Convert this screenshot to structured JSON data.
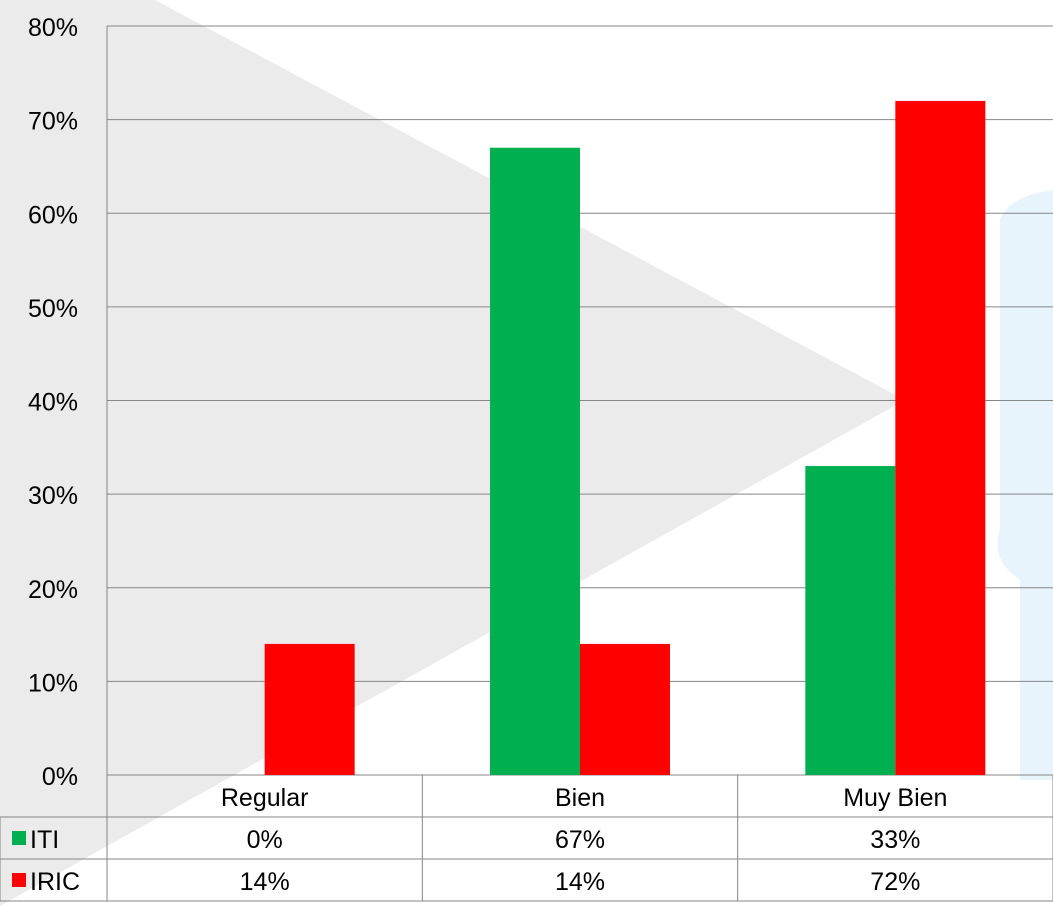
{
  "chart_data": {
    "type": "bar",
    "title": "",
    "xlabel": "",
    "ylabel": "",
    "categories": [
      "Regular",
      "Bien",
      "Muy Bien"
    ],
    "series": [
      {
        "name": "ITI",
        "values": [
          0,
          67,
          33
        ],
        "labels": [
          "0%",
          "67%",
          "33%"
        ],
        "color": "#00B050"
      },
      {
        "name": "IRIC",
        "values": [
          14,
          14,
          72
        ],
        "labels": [
          "14%",
          "14%",
          "72%"
        ],
        "color": "#FF0000"
      }
    ],
    "ylim": [
      0,
      80
    ],
    "yticks": [
      0,
      10,
      20,
      30,
      40,
      50,
      60,
      70,
      80
    ],
    "ytick_labels": [
      "0%",
      "10%",
      "20%",
      "30%",
      "40%",
      "50%",
      "60%",
      "70%",
      "80%"
    ],
    "grid": true,
    "legend": "data-table",
    "colors": {
      "gridline": "#868686",
      "axis": "#868686",
      "background_shape": "#EBEBEB",
      "watermark": "#E7F4FB"
    }
  }
}
